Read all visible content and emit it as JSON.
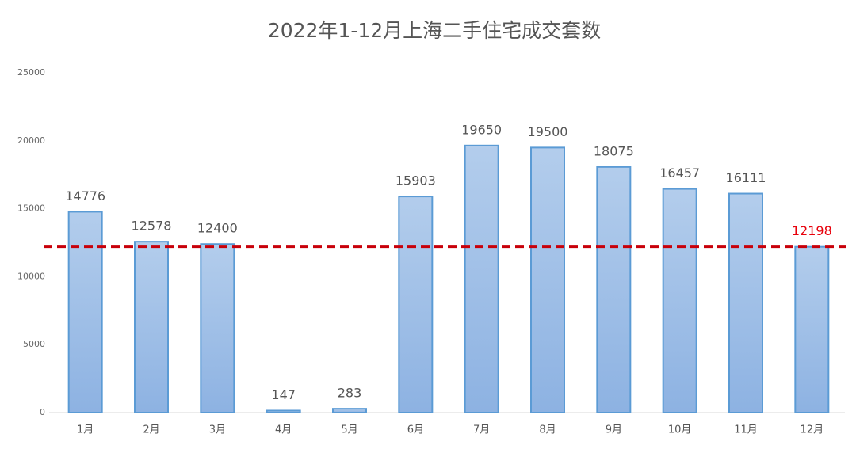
{
  "chart_data": {
    "type": "bar",
    "title": "2022年1-12月上海二手住宅成交套数",
    "categories": [
      "1月",
      "2月",
      "3月",
      "4月",
      "5月",
      "6月",
      "7月",
      "8月",
      "9月",
      "10月",
      "11月",
      "12月"
    ],
    "values": [
      14776,
      12578,
      12400,
      147,
      283,
      15903,
      19650,
      19500,
      18075,
      16457,
      16111,
      12198
    ],
    "color": "#5b9bd5",
    "value_label_colors": [
      "#555555",
      "#555555",
      "#555555",
      "#555555",
      "#555555",
      "#555555",
      "#555555",
      "#555555",
      "#555555",
      "#555555",
      "#555555",
      "#e8000b"
    ],
    "reference_line": 12198,
    "reference_line_color": "#c8000a",
    "ylim": [
      0,
      25000
    ],
    "yticks": [
      0,
      5000,
      10000,
      15000,
      20000,
      25000
    ],
    "grid": false
  }
}
